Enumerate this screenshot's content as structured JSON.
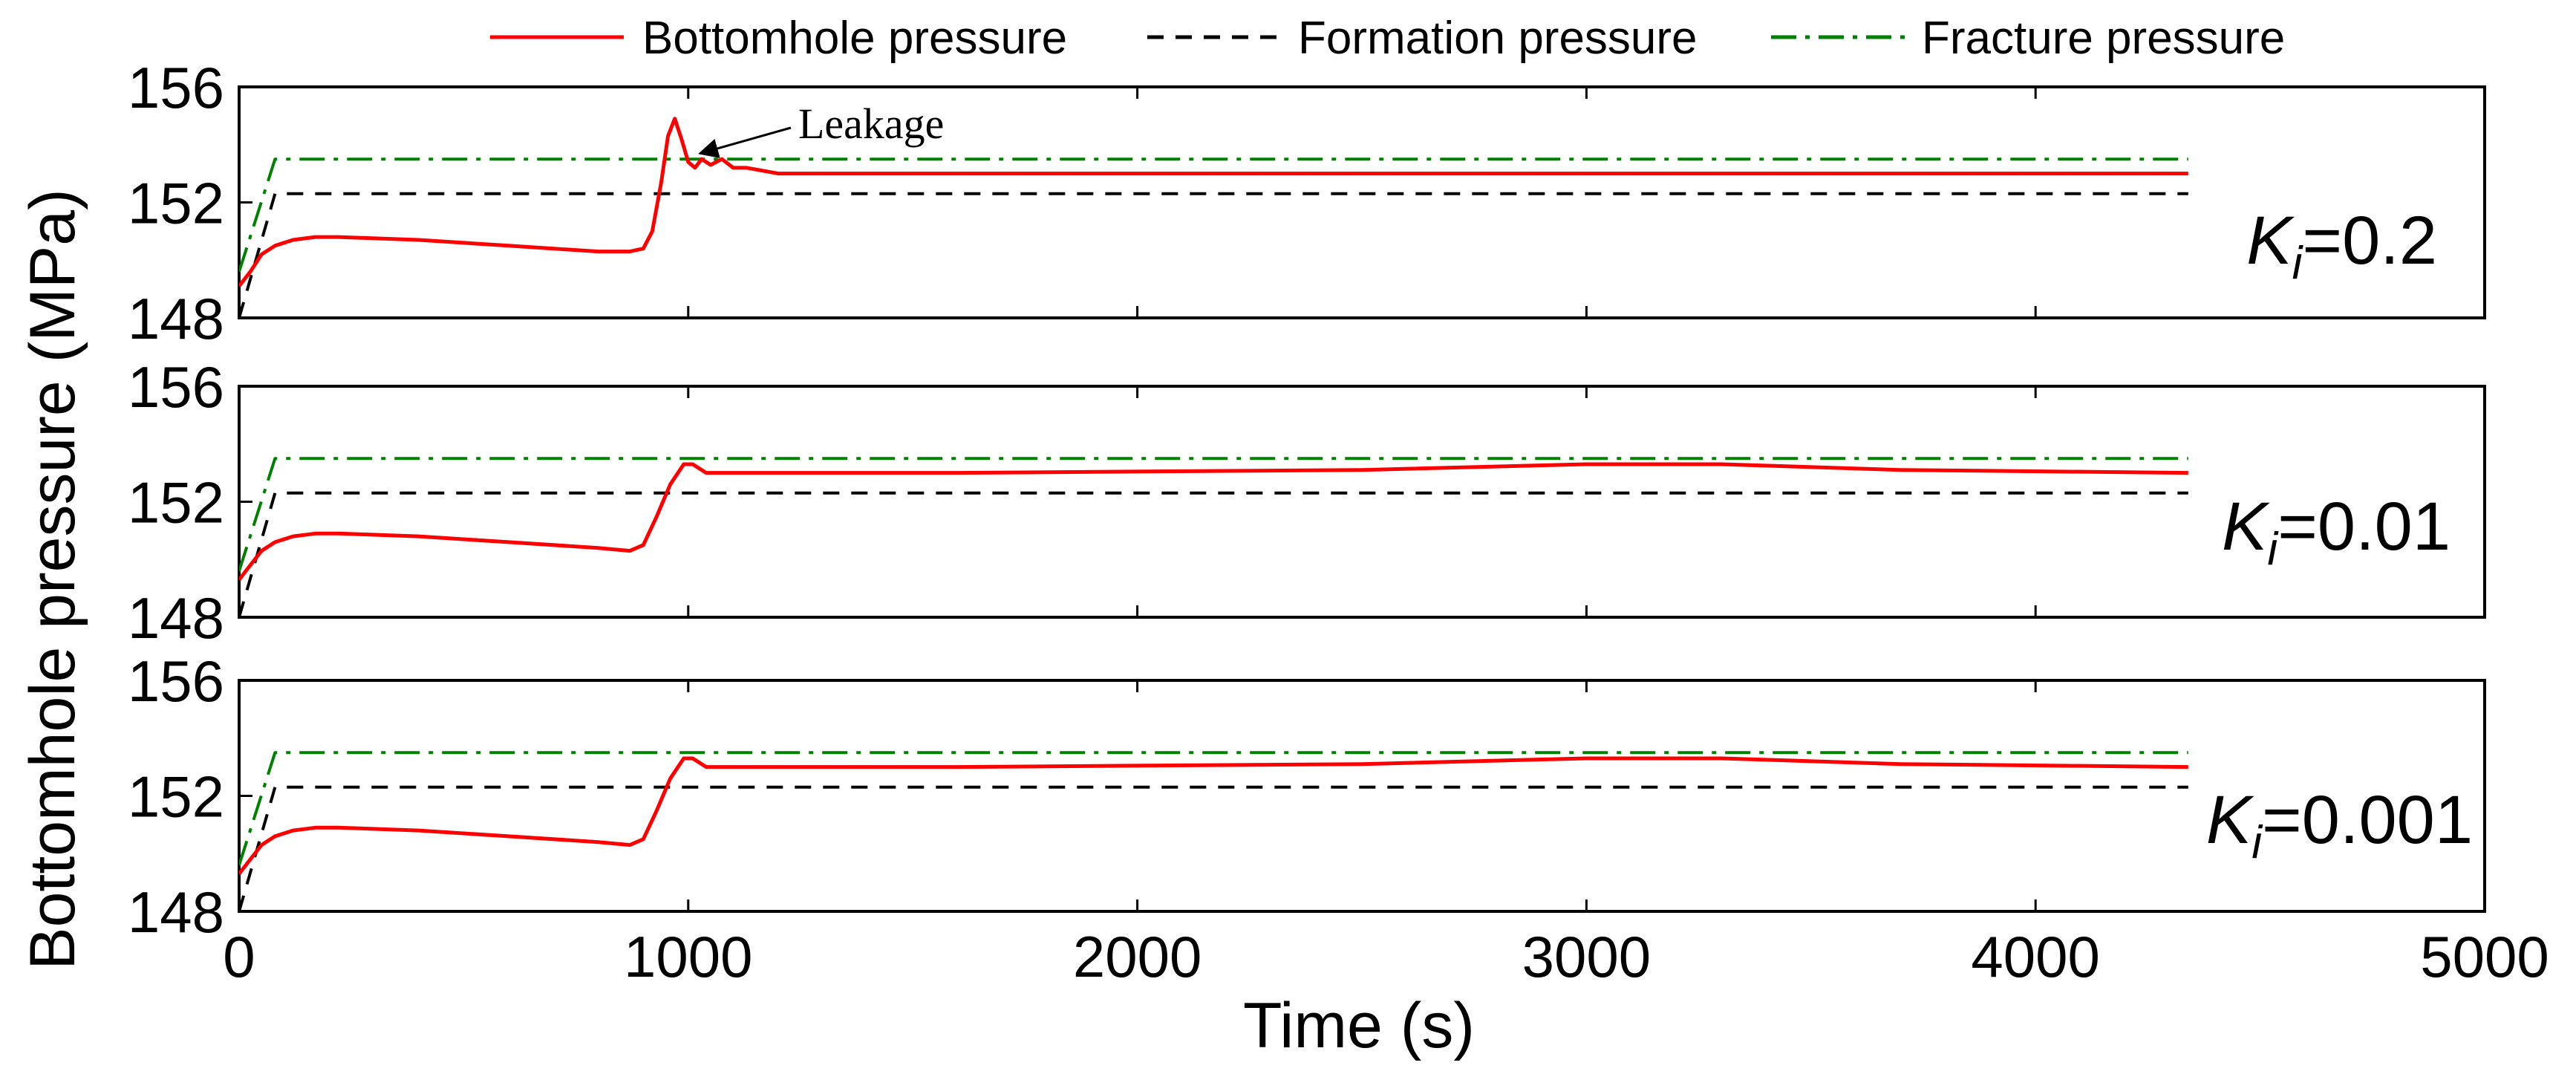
{
  "chart_data": {
    "type": "line",
    "xlabel": "Time (s)",
    "ylabel": "Bottomhole pressure (MPa)",
    "xlim": [
      0,
      5000
    ],
    "x_ticks": [
      0,
      1000,
      2000,
      3000,
      4000,
      5000
    ],
    "ylim": [
      148,
      156
    ],
    "y_ticks": [
      148,
      152,
      156
    ],
    "grid": false,
    "legend": {
      "placement": "top",
      "entries": [
        {
          "label": "Bottomhole pressure",
          "style": "solid",
          "color": "#ff0000"
        },
        {
          "label": "Formation pressure",
          "style": "dashed",
          "color": "#000000"
        },
        {
          "label": "Fracture pressure",
          "style": "dashdot",
          "color": "#008000"
        }
      ]
    },
    "panels": [
      {
        "label_var": "K",
        "label_sub": "i",
        "label_value": "=0.2",
        "annotation": {
          "text": "Leakage",
          "x": 990,
          "y": 153.8
        },
        "series": [
          {
            "name": "Bottomhole pressure",
            "x": [
              0,
              25,
              50,
              80,
              120,
              170,
              220,
              400,
              600,
              800,
              870,
              900,
              920,
              940,
              955,
              970,
              985,
              1000,
              1015,
              1030,
              1050,
              1075,
              1100,
              1130,
              1200,
              1600,
              2500,
              3500,
              4340
            ],
            "y": [
              149.1,
              149.6,
              150.2,
              150.5,
              150.7,
              150.8,
              150.8,
              150.7,
              150.5,
              150.3,
              150.3,
              150.4,
              151.0,
              152.7,
              154.3,
              154.9,
              154.2,
              153.4,
              153.2,
              153.5,
              153.3,
              153.5,
              153.2,
              153.2,
              153.0,
              153.0,
              153.0,
              153.0,
              153.0
            ]
          },
          {
            "name": "Formation pressure",
            "x": [
              0,
              80,
              4340
            ],
            "y": [
              148.0,
              152.3,
              152.3
            ]
          },
          {
            "name": "Fracture pressure",
            "x": [
              0,
              80,
              4340
            ],
            "y": [
              149.6,
              153.5,
              153.5
            ]
          }
        ]
      },
      {
        "label_var": "K",
        "label_sub": "i",
        "label_value": "=0.01",
        "series": [
          {
            "name": "Bottomhole pressure",
            "x": [
              0,
              25,
              50,
              80,
              120,
              170,
              220,
              400,
              600,
              800,
              870,
              900,
              930,
              960,
              990,
              1010,
              1040,
              1080,
              1200,
              1600,
              2500,
              3000,
              3300,
              3700,
              4340
            ],
            "y": [
              149.3,
              149.8,
              150.3,
              150.6,
              150.8,
              150.9,
              150.9,
              150.8,
              150.6,
              150.4,
              150.3,
              150.5,
              151.5,
              152.6,
              153.3,
              153.3,
              153.0,
              153.0,
              153.0,
              153.0,
              153.1,
              153.3,
              153.3,
              153.1,
              153.0
            ]
          },
          {
            "name": "Formation pressure",
            "x": [
              0,
              80,
              4340
            ],
            "y": [
              148.0,
              152.3,
              152.3
            ]
          },
          {
            "name": "Fracture pressure",
            "x": [
              0,
              80,
              4340
            ],
            "y": [
              149.6,
              153.5,
              153.5
            ]
          }
        ]
      },
      {
        "label_var": "K",
        "label_sub": "i",
        "label_value": "=0.001",
        "series": [
          {
            "name": "Bottomhole pressure",
            "x": [
              0,
              25,
              50,
              80,
              120,
              170,
              220,
              400,
              600,
              800,
              870,
              900,
              930,
              960,
              990,
              1010,
              1040,
              1080,
              1200,
              1600,
              2500,
              3000,
              3300,
              3700,
              4340
            ],
            "y": [
              149.3,
              149.8,
              150.3,
              150.6,
              150.8,
              150.9,
              150.9,
              150.8,
              150.6,
              150.4,
              150.3,
              150.5,
              151.5,
              152.6,
              153.3,
              153.3,
              153.0,
              153.0,
              153.0,
              153.0,
              153.1,
              153.3,
              153.3,
              153.1,
              153.0
            ]
          },
          {
            "name": "Formation pressure",
            "x": [
              0,
              80,
              4340
            ],
            "y": [
              148.0,
              152.3,
              152.3
            ]
          },
          {
            "name": "Fracture pressure",
            "x": [
              0,
              80,
              4340
            ],
            "y": [
              149.6,
              153.5,
              153.5
            ]
          }
        ]
      }
    ]
  }
}
